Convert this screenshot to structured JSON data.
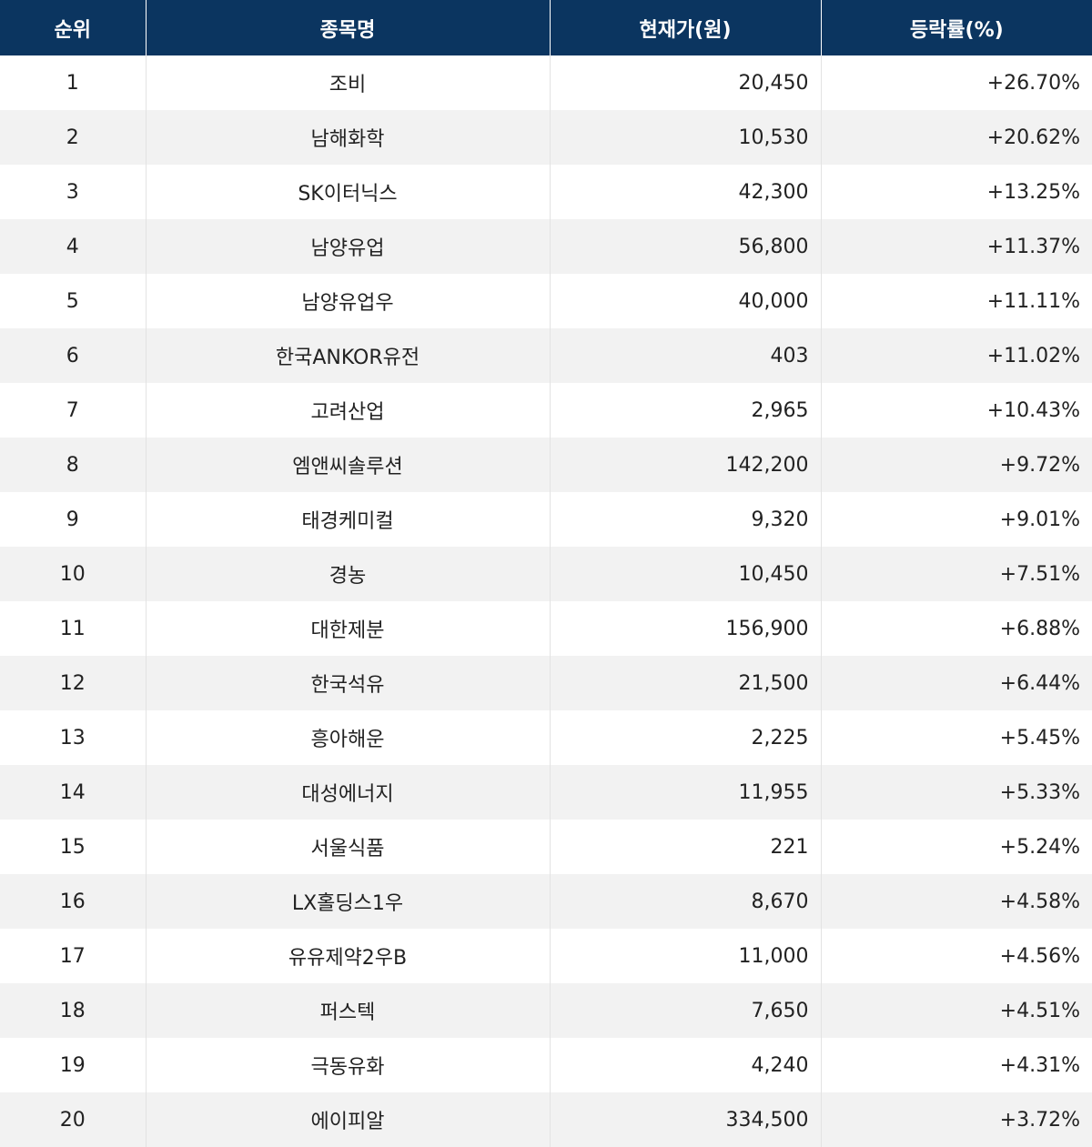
{
  "table": {
    "headers": {
      "rank": "순위",
      "name": "종목명",
      "price": "현재가(원)",
      "change": "등락률(%)"
    },
    "rows": [
      {
        "rank": "1",
        "name": "조비",
        "price": "20,450",
        "change": "+26.70%"
      },
      {
        "rank": "2",
        "name": "남해화학",
        "price": "10,530",
        "change": "+20.62%"
      },
      {
        "rank": "3",
        "name": "SK이터닉스",
        "price": "42,300",
        "change": "+13.25%"
      },
      {
        "rank": "4",
        "name": "남양유업",
        "price": "56,800",
        "change": "+11.37%"
      },
      {
        "rank": "5",
        "name": "남양유업우",
        "price": "40,000",
        "change": "+11.11%"
      },
      {
        "rank": "6",
        "name": "한국ANKOR유전",
        "price": "403",
        "change": "+11.02%"
      },
      {
        "rank": "7",
        "name": "고려산업",
        "price": "2,965",
        "change": "+10.43%"
      },
      {
        "rank": "8",
        "name": "엠앤씨솔루션",
        "price": "142,200",
        "change": "+9.72%"
      },
      {
        "rank": "9",
        "name": "태경케미컬",
        "price": "9,320",
        "change": "+9.01%"
      },
      {
        "rank": "10",
        "name": "경농",
        "price": "10,450",
        "change": "+7.51%"
      },
      {
        "rank": "11",
        "name": "대한제분",
        "price": "156,900",
        "change": "+6.88%"
      },
      {
        "rank": "12",
        "name": "한국석유",
        "price": "21,500",
        "change": "+6.44%"
      },
      {
        "rank": "13",
        "name": "흥아해운",
        "price": "2,225",
        "change": "+5.45%"
      },
      {
        "rank": "14",
        "name": "대성에너지",
        "price": "11,955",
        "change": "+5.33%"
      },
      {
        "rank": "15",
        "name": "서울식품",
        "price": "221",
        "change": "+5.24%"
      },
      {
        "rank": "16",
        "name": "LX홀딩스1우",
        "price": "8,670",
        "change": "+4.58%"
      },
      {
        "rank": "17",
        "name": "유유제약2우B",
        "price": "11,000",
        "change": "+4.56%"
      },
      {
        "rank": "18",
        "name": "퍼스텍",
        "price": "7,650",
        "change": "+4.51%"
      },
      {
        "rank": "19",
        "name": "극동유화",
        "price": "4,240",
        "change": "+4.31%"
      },
      {
        "rank": "20",
        "name": "에이피알",
        "price": "334,500",
        "change": "+3.72%"
      }
    ]
  }
}
